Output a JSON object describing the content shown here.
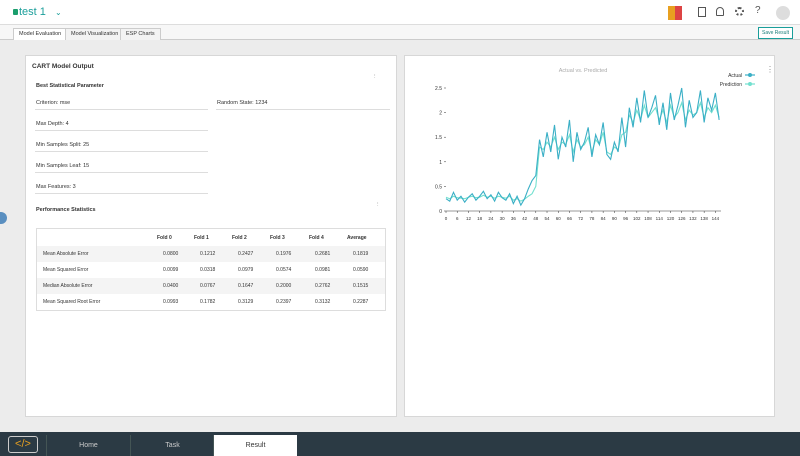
{
  "header": {
    "project": "test 1",
    "save": "Save Result"
  },
  "tabs": [
    "Model Evaluation",
    "Model Visualization",
    "ESP Charts"
  ],
  "output": {
    "title": "CART Model Output",
    "subtitle": "Best Statistical Parameter",
    "params": [
      "Criterion: mse",
      "Max Depth: 4",
      "Min Samples Split: 25",
      "Min Samples Leaf: 15",
      "Max Features: 3"
    ],
    "random_state": "Random State: 1234"
  },
  "table": {
    "title": "Performance Statistics",
    "columns": [
      "Fold 0",
      "Fold 1",
      "Fold 2",
      "Fold 3",
      "Fold 4",
      "Average"
    ],
    "rows": [
      [
        "Mean Absolute Error",
        "0.0800",
        "0.1212",
        "0.2427",
        "0.1976",
        "0.2681",
        "0.1819"
      ],
      [
        "Mean Squared Error",
        "0.0099",
        "0.0318",
        "0.0979",
        "0.0574",
        "0.0981",
        "0.0590"
      ],
      [
        "Median Absolute Error",
        "0.0400",
        "0.0767",
        "0.1647",
        "0.2000",
        "0.2762",
        "0.1515"
      ],
      [
        "Mean Squared Root Error",
        "0.0993",
        "0.1782",
        "0.3129",
        "0.2397",
        "0.3132",
        "0.2287"
      ]
    ]
  },
  "nav": [
    "Home",
    "Task",
    "Result"
  ],
  "chart_data": {
    "type": "line",
    "title": "Actual vs. Predicted",
    "legend": "top-right",
    "x": [
      0,
      2,
      4,
      6,
      8,
      10,
      12,
      14,
      16,
      18,
      20,
      22,
      24,
      26,
      28,
      30,
      32,
      34,
      36,
      38,
      40,
      42,
      44,
      46,
      48,
      50,
      52,
      54,
      56,
      58,
      60,
      62,
      64,
      66,
      68,
      70,
      72,
      74,
      76,
      78,
      80,
      82,
      84,
      86,
      88,
      90,
      92,
      94,
      96,
      98,
      100,
      102,
      104,
      106,
      108,
      110,
      112,
      114,
      116,
      118,
      120,
      122,
      124,
      126,
      128,
      130,
      132,
      134,
      136,
      138,
      140,
      142,
      144,
      146
    ],
    "series": [
      {
        "name": "Actual",
        "color": "#3aafc6",
        "values": [
          0.25,
          0.2,
          0.38,
          0.22,
          0.3,
          0.18,
          0.28,
          0.35,
          0.22,
          0.3,
          0.4,
          0.25,
          0.33,
          0.2,
          0.38,
          0.27,
          0.22,
          0.35,
          0.15,
          0.3,
          0.12,
          0.25,
          0.45,
          0.62,
          0.72,
          1.45,
          1.1,
          1.6,
          1.2,
          1.75,
          1.05,
          1.5,
          1.3,
          1.85,
          1.0,
          1.6,
          1.25,
          1.4,
          1.7,
          1.1,
          1.55,
          1.35,
          1.8,
          1.15,
          1.05,
          1.4,
          1.2,
          1.9,
          1.3,
          2.1,
          1.7,
          2.3,
          1.8,
          2.45,
          1.9,
          2.1,
          2.35,
          1.75,
          2.2,
          1.65,
          2.4,
          1.85,
          2.15,
          2.5,
          1.7,
          2.25,
          1.9,
          2.0,
          2.45,
          1.8,
          2.3,
          2.05,
          2.4,
          1.85
        ]
      },
      {
        "name": "Prediction",
        "color": "#72e0cf",
        "values": [
          0.28,
          0.25,
          0.3,
          0.27,
          0.26,
          0.25,
          0.28,
          0.3,
          0.27,
          0.28,
          0.32,
          0.28,
          0.3,
          0.26,
          0.3,
          0.28,
          0.26,
          0.3,
          0.22,
          0.25,
          0.2,
          0.24,
          0.3,
          0.35,
          0.5,
          1.3,
          1.25,
          1.4,
          1.3,
          1.5,
          1.25,
          1.4,
          1.35,
          1.55,
          1.2,
          1.45,
          1.3,
          1.35,
          1.5,
          1.2,
          1.45,
          1.35,
          1.6,
          1.2,
          1.15,
          1.3,
          1.25,
          1.55,
          1.6,
          1.95,
          1.8,
          2.05,
          1.85,
          2.15,
          1.9,
          2.0,
          2.1,
          1.85,
          2.05,
          1.8,
          2.15,
          1.9,
          2.0,
          2.2,
          1.85,
          2.05,
          1.95,
          2.0,
          2.2,
          1.9,
          2.1,
          2.0,
          2.15,
          1.9
        ]
      }
    ],
    "xlim": [
      0,
      147
    ],
    "ylim": [
      0,
      2.5
    ],
    "xticks": [
      0,
      6,
      12,
      18,
      24,
      30,
      36,
      42,
      48,
      54,
      60,
      66,
      72,
      78,
      84,
      90,
      96,
      102,
      108,
      114,
      120,
      126,
      132,
      138,
      144
    ],
    "yticks": [
      0,
      0.5,
      1,
      1.5,
      2,
      2.5
    ]
  }
}
